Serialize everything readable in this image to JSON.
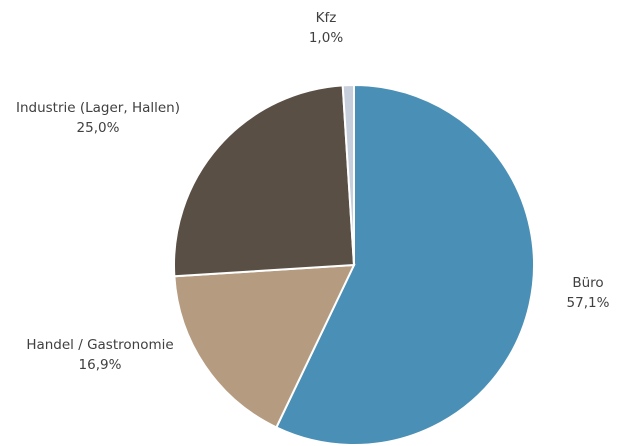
{
  "chart_data": {
    "type": "pie",
    "categories": [
      "Büro",
      "Handel / Gastronomie",
      "Industrie (Lager, Hallen)",
      "Kfz"
    ],
    "values": [
      57.1,
      16.9,
      25.0,
      1.0
    ],
    "value_labels": [
      "57,1%",
      "16,9%",
      "25,0%",
      "1,0%"
    ],
    "colors": [
      "#4a8fb5",
      "#b59b80",
      "#5a4f45",
      "#c8cfdc"
    ]
  }
}
